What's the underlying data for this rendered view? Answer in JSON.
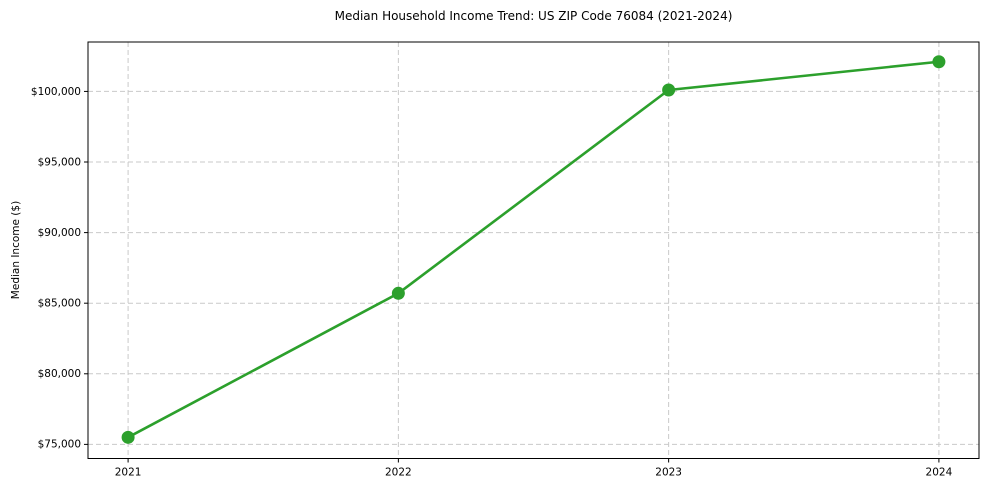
{
  "chart_data": {
    "type": "line",
    "title": "Median Household Income Trend: US ZIP Code 76084 (2021-2024)",
    "xlabel": "",
    "ylabel": "Median Income ($)",
    "categories": [
      "2021",
      "2022",
      "2023",
      "2024"
    ],
    "values": [
      75500,
      85700,
      100100,
      102100
    ],
    "ylim": [
      74000,
      103500
    ],
    "yticks": [
      75000,
      80000,
      85000,
      90000,
      95000,
      100000
    ],
    "ytick_labels": [
      "$75,000",
      "$80,000",
      "$85,000",
      "$90,000",
      "$95,000",
      "$100,000"
    ],
    "grid": true,
    "grid_style": "dashed",
    "legend_position": "none",
    "marker": "circle"
  },
  "style": {
    "line_color": "#2ca02c",
    "marker_color": "#2ca02c",
    "grid_color": "#c9c9c9",
    "axis_color": "#000000",
    "text_color": "#000000",
    "background": "#ffffff"
  }
}
